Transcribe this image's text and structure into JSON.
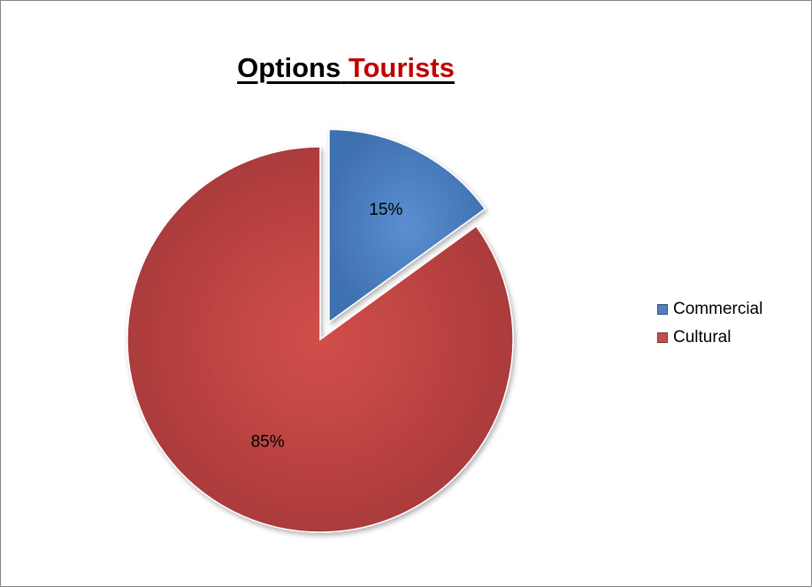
{
  "chart_data": {
    "type": "pie",
    "title_parts": [
      {
        "text": "Options",
        "color": "#000000"
      },
      {
        "text": "Tourists",
        "color": "#c00000"
      }
    ],
    "categories": [
      "Commercial",
      "Cultural"
    ],
    "values": [
      15,
      85
    ],
    "data_labels": [
      "15%",
      "85%"
    ],
    "colors": [
      "#4f81bd",
      "#c0504d"
    ],
    "exploded": [
      true,
      false
    ],
    "legend_position": "right"
  }
}
